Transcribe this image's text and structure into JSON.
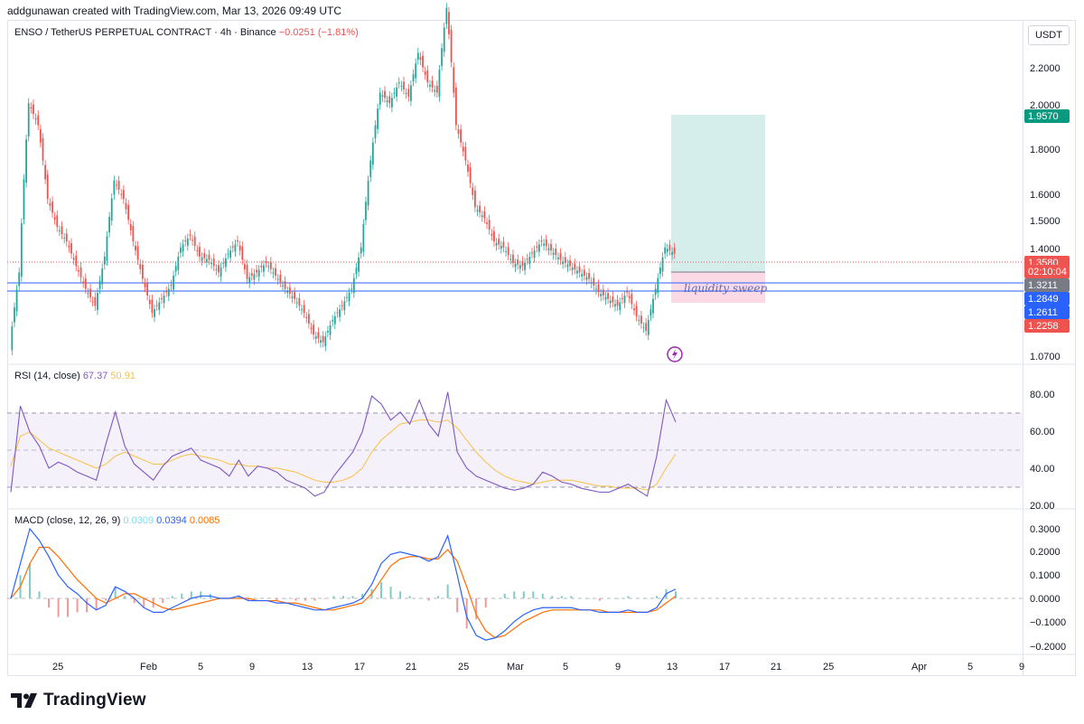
{
  "header": {
    "attribution": "addgunawan created with TradingView.com, Mar 13, 2026 09:49 UTC"
  },
  "symbol": {
    "name": "ENSO / TetherUS PERPETUAL CONTRACT",
    "interval": "4h",
    "exchange": "Binance",
    "change": "−0.0251 (−1.81%)"
  },
  "currency_button": "USDT",
  "price_axis": {
    "ticks": [
      "2.2000",
      "2.0000",
      "1.8000",
      "1.6000",
      "1.5000",
      "1.4000",
      "1.0700"
    ]
  },
  "price_badges": {
    "target": "1.9570",
    "last": "1.3580",
    "countdown": "02:10:04",
    "entry": "1.3211",
    "line_high": "1.2849",
    "line_low": "1.2611",
    "stop": "1.2258"
  },
  "annotation": {
    "text": "liquidity sweep"
  },
  "rsi": {
    "label": "RSI (14, close)",
    "value": "67.37",
    "ma": "50.91",
    "ticks": [
      "80.00",
      "60.00",
      "40.00",
      "20.00"
    ]
  },
  "macd": {
    "label": "MACD (close, 12, 26, 9)",
    "hist": "0.0309",
    "macd": "0.0394",
    "signal": "0.0085",
    "ticks": [
      "0.3000",
      "0.2000",
      "0.1000",
      "0.0000",
      "−0.1000",
      "−0.2000"
    ]
  },
  "time_axis": {
    "labels": [
      "25",
      "Feb",
      "5",
      "9",
      "13",
      "17",
      "21",
      "25",
      "Mar",
      "5",
      "9",
      "13",
      "17",
      "21",
      "25",
      "Apr",
      "5",
      "9"
    ]
  },
  "footer": {
    "brand": "TradingView"
  },
  "colors": {
    "up": "#26a69a",
    "down": "#ef5350",
    "rsi": "#7e57c2",
    "rsi_ma": "#f7c244",
    "macd": "#2962ff",
    "signal": "#ff6d00",
    "hline": "#2962ff",
    "target_zone": "#b2dfdb",
    "stop_zone": "#f8bbd0"
  },
  "chart_data": {
    "type": "candlestick",
    "title": "ENSO / TetherUS PERPETUAL CONTRACT · 4h · Binance",
    "ylim": [
      1.05,
      2.35
    ],
    "x_labels": [
      "25",
      "Feb",
      "5",
      "9",
      "13",
      "17",
      "21",
      "25",
      "Mar",
      "5",
      "9",
      "13"
    ],
    "closes": [
      1.09,
      1.3,
      1.95,
      1.85,
      1.55,
      1.45,
      1.4,
      1.32,
      1.25,
      1.2,
      1.35,
      1.62,
      1.55,
      1.4,
      1.28,
      1.18,
      1.22,
      1.26,
      1.38,
      1.42,
      1.35,
      1.34,
      1.3,
      1.36,
      1.4,
      1.28,
      1.3,
      1.33,
      1.29,
      1.25,
      1.22,
      1.18,
      1.12,
      1.1,
      1.16,
      1.2,
      1.25,
      1.38,
      1.7,
      2.0,
      1.95,
      2.05,
      1.98,
      2.2,
      2.05,
      2.0,
      2.45,
      1.85,
      1.7,
      1.52,
      1.48,
      1.4,
      1.38,
      1.33,
      1.32,
      1.36,
      1.4,
      1.37,
      1.34,
      1.32,
      1.3,
      1.28,
      1.24,
      1.22,
      1.2,
      1.24,
      1.17,
      1.13,
      1.25,
      1.38,
      1.36
    ],
    "levels": {
      "target": 1.957,
      "entry": 1.3211,
      "line_high": 1.2849,
      "line_low": 1.2611,
      "stop": 1.2258
    },
    "rsi_ylim": [
      25,
      90
    ],
    "rsi_series": [
      32,
      75,
      62,
      55,
      44,
      47,
      45,
      42,
      40,
      38,
      56,
      72,
      55,
      46,
      42,
      38,
      45,
      50,
      52,
      54,
      48,
      46,
      44,
      40,
      48,
      40,
      45,
      44,
      42,
      38,
      36,
      34,
      30,
      32,
      40,
      46,
      52,
      62,
      80,
      76,
      68,
      72,
      66,
      78,
      66,
      60,
      82,
      52,
      44,
      40,
      38,
      36,
      34,
      33,
      34,
      36,
      42,
      40,
      37,
      36,
      34,
      33,
      32,
      32,
      34,
      36,
      33,
      30,
      50,
      78,
      67
    ],
    "rsi_ma_series": [
      45,
      60,
      62,
      58,
      54,
      52,
      50,
      48,
      46,
      44,
      46,
      50,
      52,
      50,
      48,
      46,
      46,
      48,
      50,
      51,
      50,
      49,
      48,
      46,
      46,
      45,
      45,
      44,
      44,
      43,
      42,
      40,
      38,
      37,
      37,
      38,
      40,
      44,
      52,
      58,
      62,
      66,
      67,
      68,
      68,
      67,
      68,
      64,
      58,
      52,
      47,
      43,
      40,
      38,
      37,
      36,
      37,
      38,
      38,
      38,
      37,
      36,
      35,
      35,
      34,
      34,
      34,
      33,
      36,
      44,
      51
    ],
    "macd_ylim": [
      -0.22,
      0.33
    ],
    "macd_series": [
      0.0,
      0.15,
      0.3,
      0.25,
      0.18,
      0.1,
      0.05,
      0.02,
      -0.02,
      -0.05,
      -0.03,
      0.05,
      0.03,
      0.0,
      -0.04,
      -0.06,
      -0.06,
      -0.04,
      -0.02,
      0.0,
      0.01,
      0.01,
      0.0,
      0.0,
      0.01,
      -0.01,
      -0.01,
      -0.01,
      -0.02,
      -0.02,
      -0.03,
      -0.04,
      -0.05,
      -0.05,
      -0.04,
      -0.03,
      -0.02,
      0.0,
      0.06,
      0.15,
      0.19,
      0.2,
      0.19,
      0.18,
      0.16,
      0.18,
      0.27,
      0.1,
      -0.08,
      -0.16,
      -0.18,
      -0.17,
      -0.14,
      -0.1,
      -0.07,
      -0.05,
      -0.04,
      -0.04,
      -0.04,
      -0.04,
      -0.05,
      -0.05,
      -0.06,
      -0.06,
      -0.06,
      -0.05,
      -0.06,
      -0.06,
      -0.04,
      0.02,
      0.04
    ],
    "signal_series": [
      0.0,
      0.05,
      0.15,
      0.22,
      0.22,
      0.18,
      0.13,
      0.08,
      0.04,
      0.0,
      -0.02,
      0.0,
      0.02,
      0.02,
      0.0,
      -0.02,
      -0.04,
      -0.05,
      -0.04,
      -0.03,
      -0.02,
      -0.01,
      0.0,
      0.0,
      0.0,
      0.0,
      -0.01,
      -0.01,
      -0.01,
      -0.02,
      -0.02,
      -0.03,
      -0.04,
      -0.05,
      -0.05,
      -0.04,
      -0.03,
      -0.02,
      0.02,
      0.08,
      0.14,
      0.17,
      0.18,
      0.18,
      0.17,
      0.17,
      0.21,
      0.16,
      0.05,
      -0.07,
      -0.14,
      -0.17,
      -0.16,
      -0.13,
      -0.1,
      -0.08,
      -0.06,
      -0.05,
      -0.05,
      -0.05,
      -0.05,
      -0.05,
      -0.05,
      -0.06,
      -0.06,
      -0.06,
      -0.06,
      -0.06,
      -0.05,
      -0.02,
      0.01
    ]
  }
}
